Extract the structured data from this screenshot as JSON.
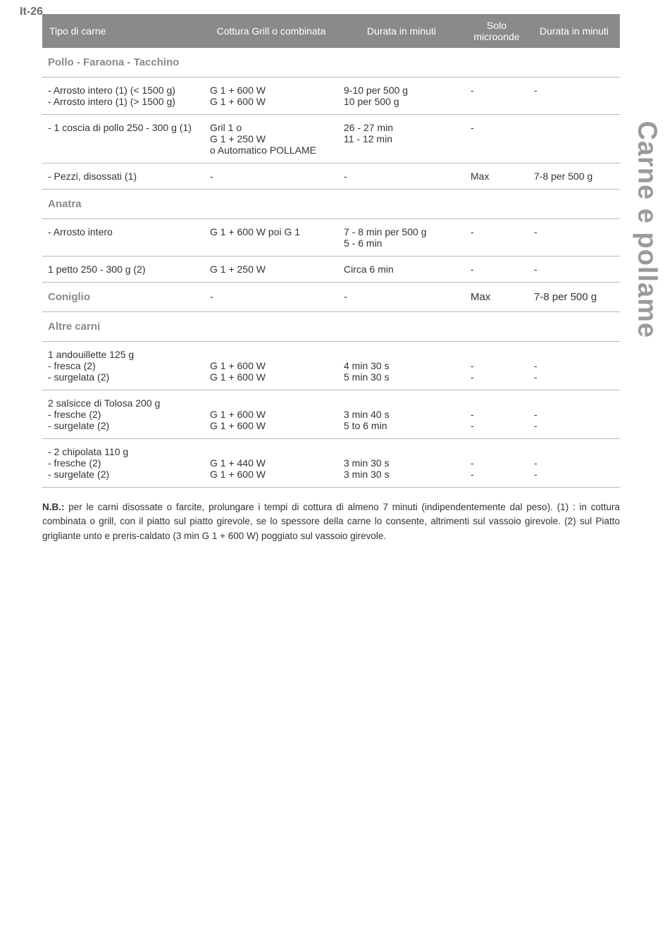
{
  "page_number": "It-26",
  "side_heading": "Carne e pollame",
  "headers": {
    "c1": "Tipo di carne",
    "c2": "Cottura Grill o combinata",
    "c3": "Durata in minuti",
    "c4_l1": "Solo",
    "c4_l2": "microonde",
    "c5": "Durata in minuti"
  },
  "sections": {
    "s1": "Pollo - Faraona - Tacchino",
    "s2": "Anatra",
    "s3": "Coniglio",
    "s4": "Altre carni"
  },
  "rows": {
    "r1": {
      "c1a": "- Arrosto intero (1) (< 1500 g)",
      "c1b": "- Arrosto intero (1) (> 1500 g)",
      "c2a": "G 1 + 600 W",
      "c2b": "G 1 + 600 W",
      "c3a": "9-10 per 500 g",
      "c3b": "10 per 500 g",
      "c4": "-",
      "c5": "-"
    },
    "r2": {
      "c1": "- 1 coscia di pollo 250 - 300 g (1)",
      "c2a": "Gril 1 o",
      "c2b": "G 1 + 250 W",
      "c2c": "o Automatico POLLAME",
      "c3a": "26 - 27 min",
      "c3b": "11 - 12 min",
      "c4": "-",
      "c5": ""
    },
    "r3": {
      "c1": "- Pezzi, disossati (1)",
      "c2": "-",
      "c3": "-",
      "c4": "Max",
      "c5": "7-8 per 500 g"
    },
    "r4": {
      "c1": "- Arrosto intero",
      "c2": "G 1 + 600 W  poi G 1",
      "c3a": "7 - 8 min per 500 g",
      "c3b": "5 - 6 min",
      "c4": "-",
      "c5": "-"
    },
    "r5": {
      "c1": "1 petto 250 - 300 g (2)",
      "c2": "G 1 + 250 W",
      "c3": "Circa 6 min",
      "c4": "-",
      "c5": "-"
    },
    "r6": {
      "c1": "",
      "c2": "-",
      "c3": "-",
      "c4": "Max",
      "c5": "7-8 per 500 g"
    },
    "r7": {
      "c1a": "1 andouillette 125 g",
      "c1b": "- fresca (2)",
      "c1c": "- surgelata (2)",
      "c2a": "G 1 + 600 W",
      "c2b": "G 1 + 600 W",
      "c3a": "4 min 30 s",
      "c3b": "5 min 30 s",
      "c4a": "-",
      "c4b": "-",
      "c5a": "-",
      "c5b": "-"
    },
    "r8": {
      "c1a": "2 salsicce di Tolosa 200 g",
      "c1b": "- fresche (2)",
      "c1c": "- surgelate (2)",
      "c2a": "G 1 + 600 W",
      "c2b": "G 1 + 600 W",
      "c3a": "3 min 40 s",
      "c3b": "5 to 6 min",
      "c4a": "-",
      "c4b": "-",
      "c5a": "-",
      "c5b": "-"
    },
    "r9": {
      "c1a": "- 2 chipolata 110 g",
      "c1b": "- fresche (2)",
      "c1c": "- surgelate (2)",
      "c2a": "G 1 + 440 W",
      "c2b": "G 1 + 600 W",
      "c3a": "3 min 30 s",
      "c3b": "3 min 30 s",
      "c4a": "-",
      "c4b": "-",
      "c5a": "-",
      "c5b": "-"
    }
  },
  "footnote": "N.B.: per le carni disossate o farcite, prolungare i tempi di cottura di almeno 7 minuti (indipendentemente dal peso). (1) : in cottura combinata o grill, con il piatto sul piatto girevole, se lo spessore della carne lo consente, altrimenti sul vassoio girevole. (2) sul Piatto grigliante unto e preris-caldato (3 min G 1 + 600 W) poggiato sul vassoio girevole.",
  "footnote_bold": "N.B.:"
}
